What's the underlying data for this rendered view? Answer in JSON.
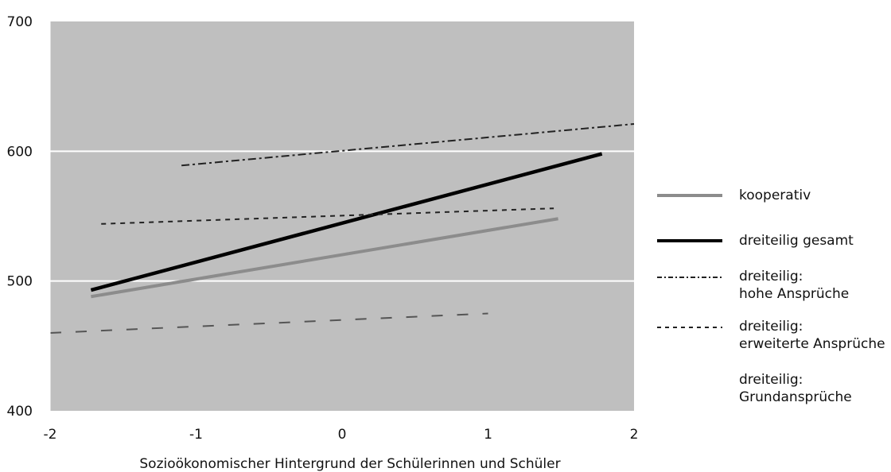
{
  "chart_data": {
    "type": "line",
    "title": "",
    "xlabel": "Sozioökonomischer Hintergrund der Schülerinnen und Schüler",
    "ylabel": "",
    "xlim": [
      -2,
      2
    ],
    "ylim": [
      400,
      700
    ],
    "x_ticks": [
      "-2",
      "-1",
      "0",
      "1",
      "2"
    ],
    "y_ticks": [
      "400",
      "500",
      "600",
      "700"
    ],
    "grid": "horizontal white lines at 500 and 600",
    "background": "#bfbfbf",
    "legend_position": "right",
    "series": [
      {
        "name": "kooperativ",
        "x": [
          -1.72,
          1.48
        ],
        "y": [
          488,
          548
        ],
        "color": "#8c8c8c",
        "style": "solid"
      },
      {
        "name": "dreiteilig gesamt",
        "x": [
          -1.72,
          1.78
        ],
        "y": [
          493,
          598
        ],
        "color": "#000000",
        "style": "solid-bold"
      },
      {
        "name": "dreiteilig: hohe Ansprüche",
        "x": [
          -1.1,
          2.0
        ],
        "y": [
          589,
          621
        ],
        "color": "#222222",
        "style": "dash-dot"
      },
      {
        "name": "dreiteilig: erweiterte Ansprüche",
        "x": [
          -1.65,
          1.45
        ],
        "y": [
          544,
          556
        ],
        "color": "#222222",
        "style": "dashed"
      },
      {
        "name": "dreiteilig: Grundansprüche",
        "x": [
          -2.0,
          1.0
        ],
        "y": [
          460,
          475
        ],
        "color": "#555555",
        "style": "long-dash"
      }
    ]
  },
  "legend": {
    "items": [
      {
        "lines": [
          "kooperativ"
        ]
      },
      {
        "lines": [
          "dreiteilig gesamt"
        ]
      },
      {
        "lines": [
          "dreiteilig:",
          "hohe Ansprüche"
        ]
      },
      {
        "lines": [
          "dreiteilig:",
          "erweiterte Ansprüche"
        ]
      },
      {
        "lines": [
          "dreiteilig:",
          "Grundansprüche"
        ]
      }
    ]
  }
}
